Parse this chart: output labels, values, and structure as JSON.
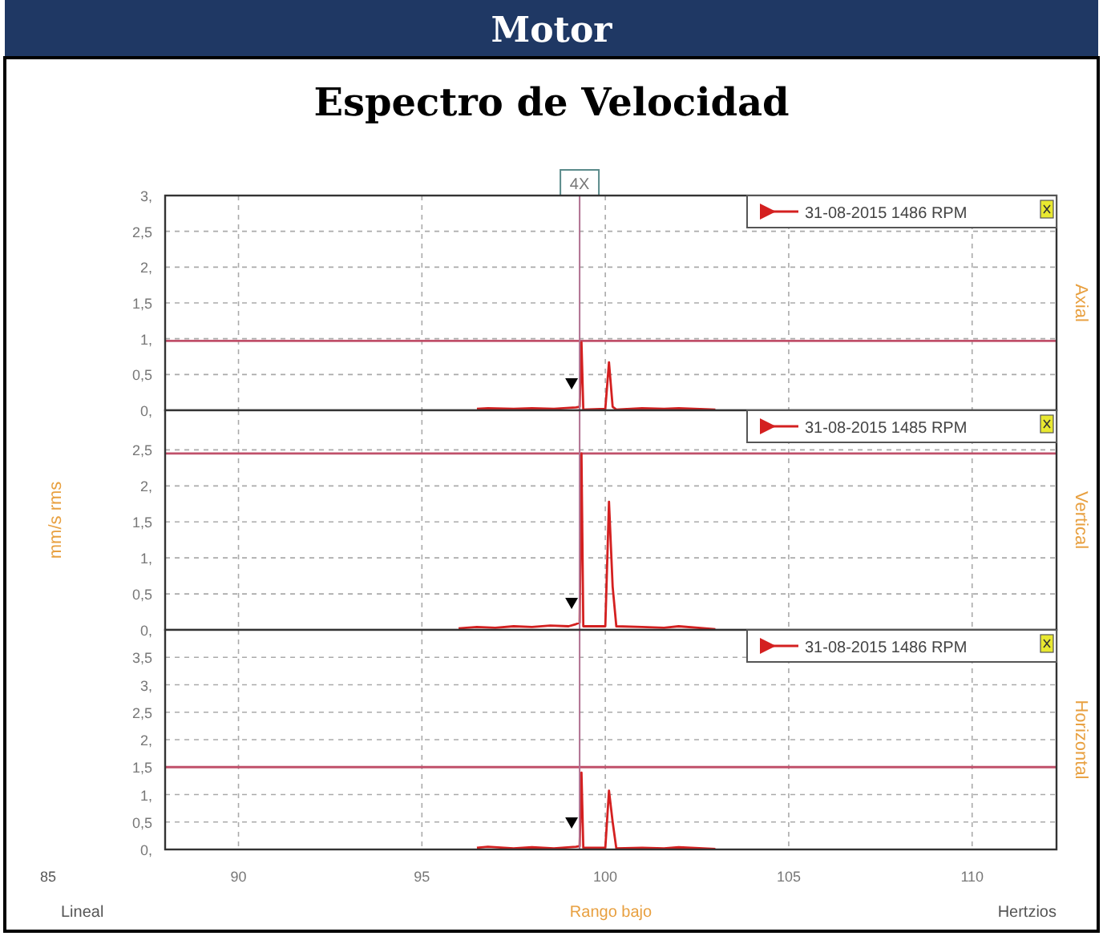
{
  "chart_data": [
    {
      "type": "line",
      "title": "Motor",
      "subtitle": "Espectro de Velocidad",
      "y2label": "Axial",
      "xlim": [
        88,
        112.3
      ],
      "xticks": [
        90,
        95,
        100,
        105,
        110
      ],
      "ylim": [
        0,
        3
      ],
      "yticks": [
        {
          "value": 0,
          "label": "0,"
        },
        {
          "value": 0.5,
          "label": "0,5"
        },
        {
          "value": 1,
          "label": "1,"
        },
        {
          "value": 1.5,
          "label": "1,5"
        },
        {
          "value": 2,
          "label": "2,"
        },
        {
          "value": 2.5,
          "label": "2,5"
        },
        {
          "value": 3,
          "label": "3,"
        }
      ],
      "tick_labels": "y",
      "grid": true,
      "legend": "top right",
      "marker": "none",
      "line_style": "solid",
      "series": [
        {
          "name": "31-08-2015 1486 RPM",
          "color": "#d42020",
          "x": [
            96.5,
            96.8,
            97.5,
            98,
            98.6,
            99.2,
            99.3,
            99.35,
            99.4,
            100,
            100.1,
            100.2,
            100.3,
            101,
            101.6,
            102,
            103
          ],
          "values": [
            0.02,
            0.03,
            0.02,
            0.03,
            0.02,
            0.04,
            0.05,
            0.95,
            0.01,
            0.02,
            0.67,
            0.05,
            0.01,
            0.03,
            0.02,
            0.03,
            0.01
          ]
        }
      ],
      "ref_lines": [
        {
          "axis": "x",
          "value": 99.3,
          "label": "4X",
          "color": "#b07090"
        },
        {
          "axis": "y",
          "value": 0.97,
          "color": "#c0506a"
        }
      ]
    },
    {
      "type": "line",
      "ylabel": "mm/s rms",
      "y2label": "Vertical",
      "xlim": [
        88,
        112.3
      ],
      "xticks": [
        90,
        95,
        100,
        105,
        110
      ],
      "ylim": [
        0,
        3.05
      ],
      "yticks": [
        {
          "value": 0,
          "label": "0,"
        },
        {
          "value": 0.5,
          "label": "0,5"
        },
        {
          "value": 1,
          "label": "1,"
        },
        {
          "value": 1.5,
          "label": "1,5"
        },
        {
          "value": 2,
          "label": "2,"
        },
        {
          "value": 2.5,
          "label": "2,5"
        }
      ],
      "tick_labels": "y",
      "grid": true,
      "legend": "top right",
      "marker": "none",
      "line_style": "solid",
      "series": [
        {
          "name": "31-08-2015 1485 RPM",
          "color": "#d42020",
          "x": [
            96,
            96.5,
            97,
            97.5,
            98,
            98.5,
            99,
            99.2,
            99.3,
            99.35,
            99.4,
            100,
            100.1,
            100.2,
            100.3,
            101,
            101.6,
            102,
            103
          ],
          "values": [
            0.02,
            0.04,
            0.03,
            0.05,
            0.04,
            0.06,
            0.05,
            0.08,
            0.1,
            2.45,
            0.05,
            0.05,
            1.78,
            0.6,
            0.05,
            0.04,
            0.03,
            0.05,
            0.01
          ]
        }
      ],
      "ref_lines": [
        {
          "axis": "x",
          "value": 99.3,
          "color": "#b07090"
        },
        {
          "axis": "y",
          "value": 2.45,
          "color": "#c0506a"
        }
      ]
    },
    {
      "type": "line",
      "xlabel": "Rango bajo",
      "y2label": "Horizontal",
      "xlim": [
        88,
        112.3
      ],
      "xticks": [
        90,
        95,
        100,
        105,
        110
      ],
      "ylim": [
        0,
        4
      ],
      "yticks": [
        {
          "value": 0,
          "label": "0,"
        },
        {
          "value": 0.5,
          "label": "0,5"
        },
        {
          "value": 1,
          "label": "1,"
        },
        {
          "value": 1.5,
          "label": "1,5"
        },
        {
          "value": 2,
          "label": "2,"
        },
        {
          "value": 2.5,
          "label": "2,5"
        },
        {
          "value": 3,
          "label": "3,"
        },
        {
          "value": 3.5,
          "label": "3,5"
        }
      ],
      "grid": true,
      "legend": "top right",
      "marker": "none",
      "line_style": "solid",
      "series": [
        {
          "name": "31-08-2015 1486 RPM",
          "color": "#d42020",
          "x": [
            96.5,
            96.8,
            97.5,
            98,
            98.6,
            99.2,
            99.3,
            99.35,
            99.4,
            100,
            100.1,
            100.2,
            100.3,
            101,
            101.6,
            102,
            103
          ],
          "values": [
            0.03,
            0.05,
            0.02,
            0.04,
            0.02,
            0.05,
            0.06,
            1.4,
            0.03,
            0.03,
            1.07,
            0.5,
            0.02,
            0.03,
            0.02,
            0.04,
            0.01
          ]
        }
      ],
      "ref_lines": [
        {
          "axis": "x",
          "value": 99.3,
          "color": "#b07090"
        },
        {
          "axis": "y",
          "value": 1.5,
          "color": "#c0506a"
        }
      ],
      "annotations": [
        "85",
        "Lineal",
        "Hertzios"
      ]
    }
  ]
}
